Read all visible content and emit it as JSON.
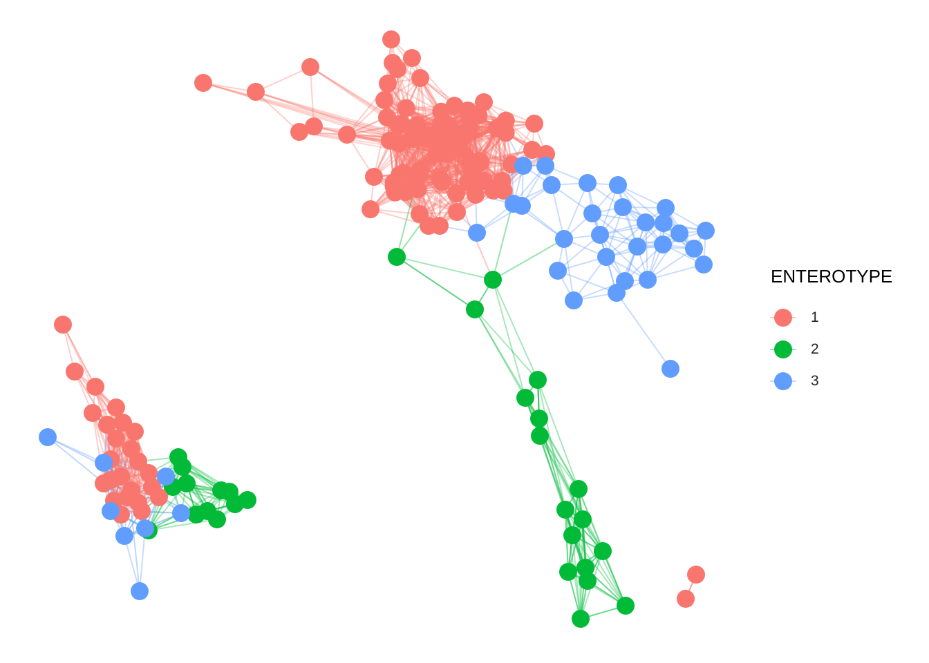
{
  "legend": {
    "title": "ENTEROTYPE",
    "items": [
      {
        "label": "1",
        "color": "#F8766D"
      },
      {
        "label": "2",
        "color": "#00BA38"
      },
      {
        "label": "3",
        "color": "#619CFF"
      }
    ]
  },
  "network": {
    "node_groups": [
      "1",
      "2",
      "3"
    ],
    "colors": {
      "1": "#F8766D",
      "2": "#00BA38",
      "3": "#619CFF"
    }
  }
}
